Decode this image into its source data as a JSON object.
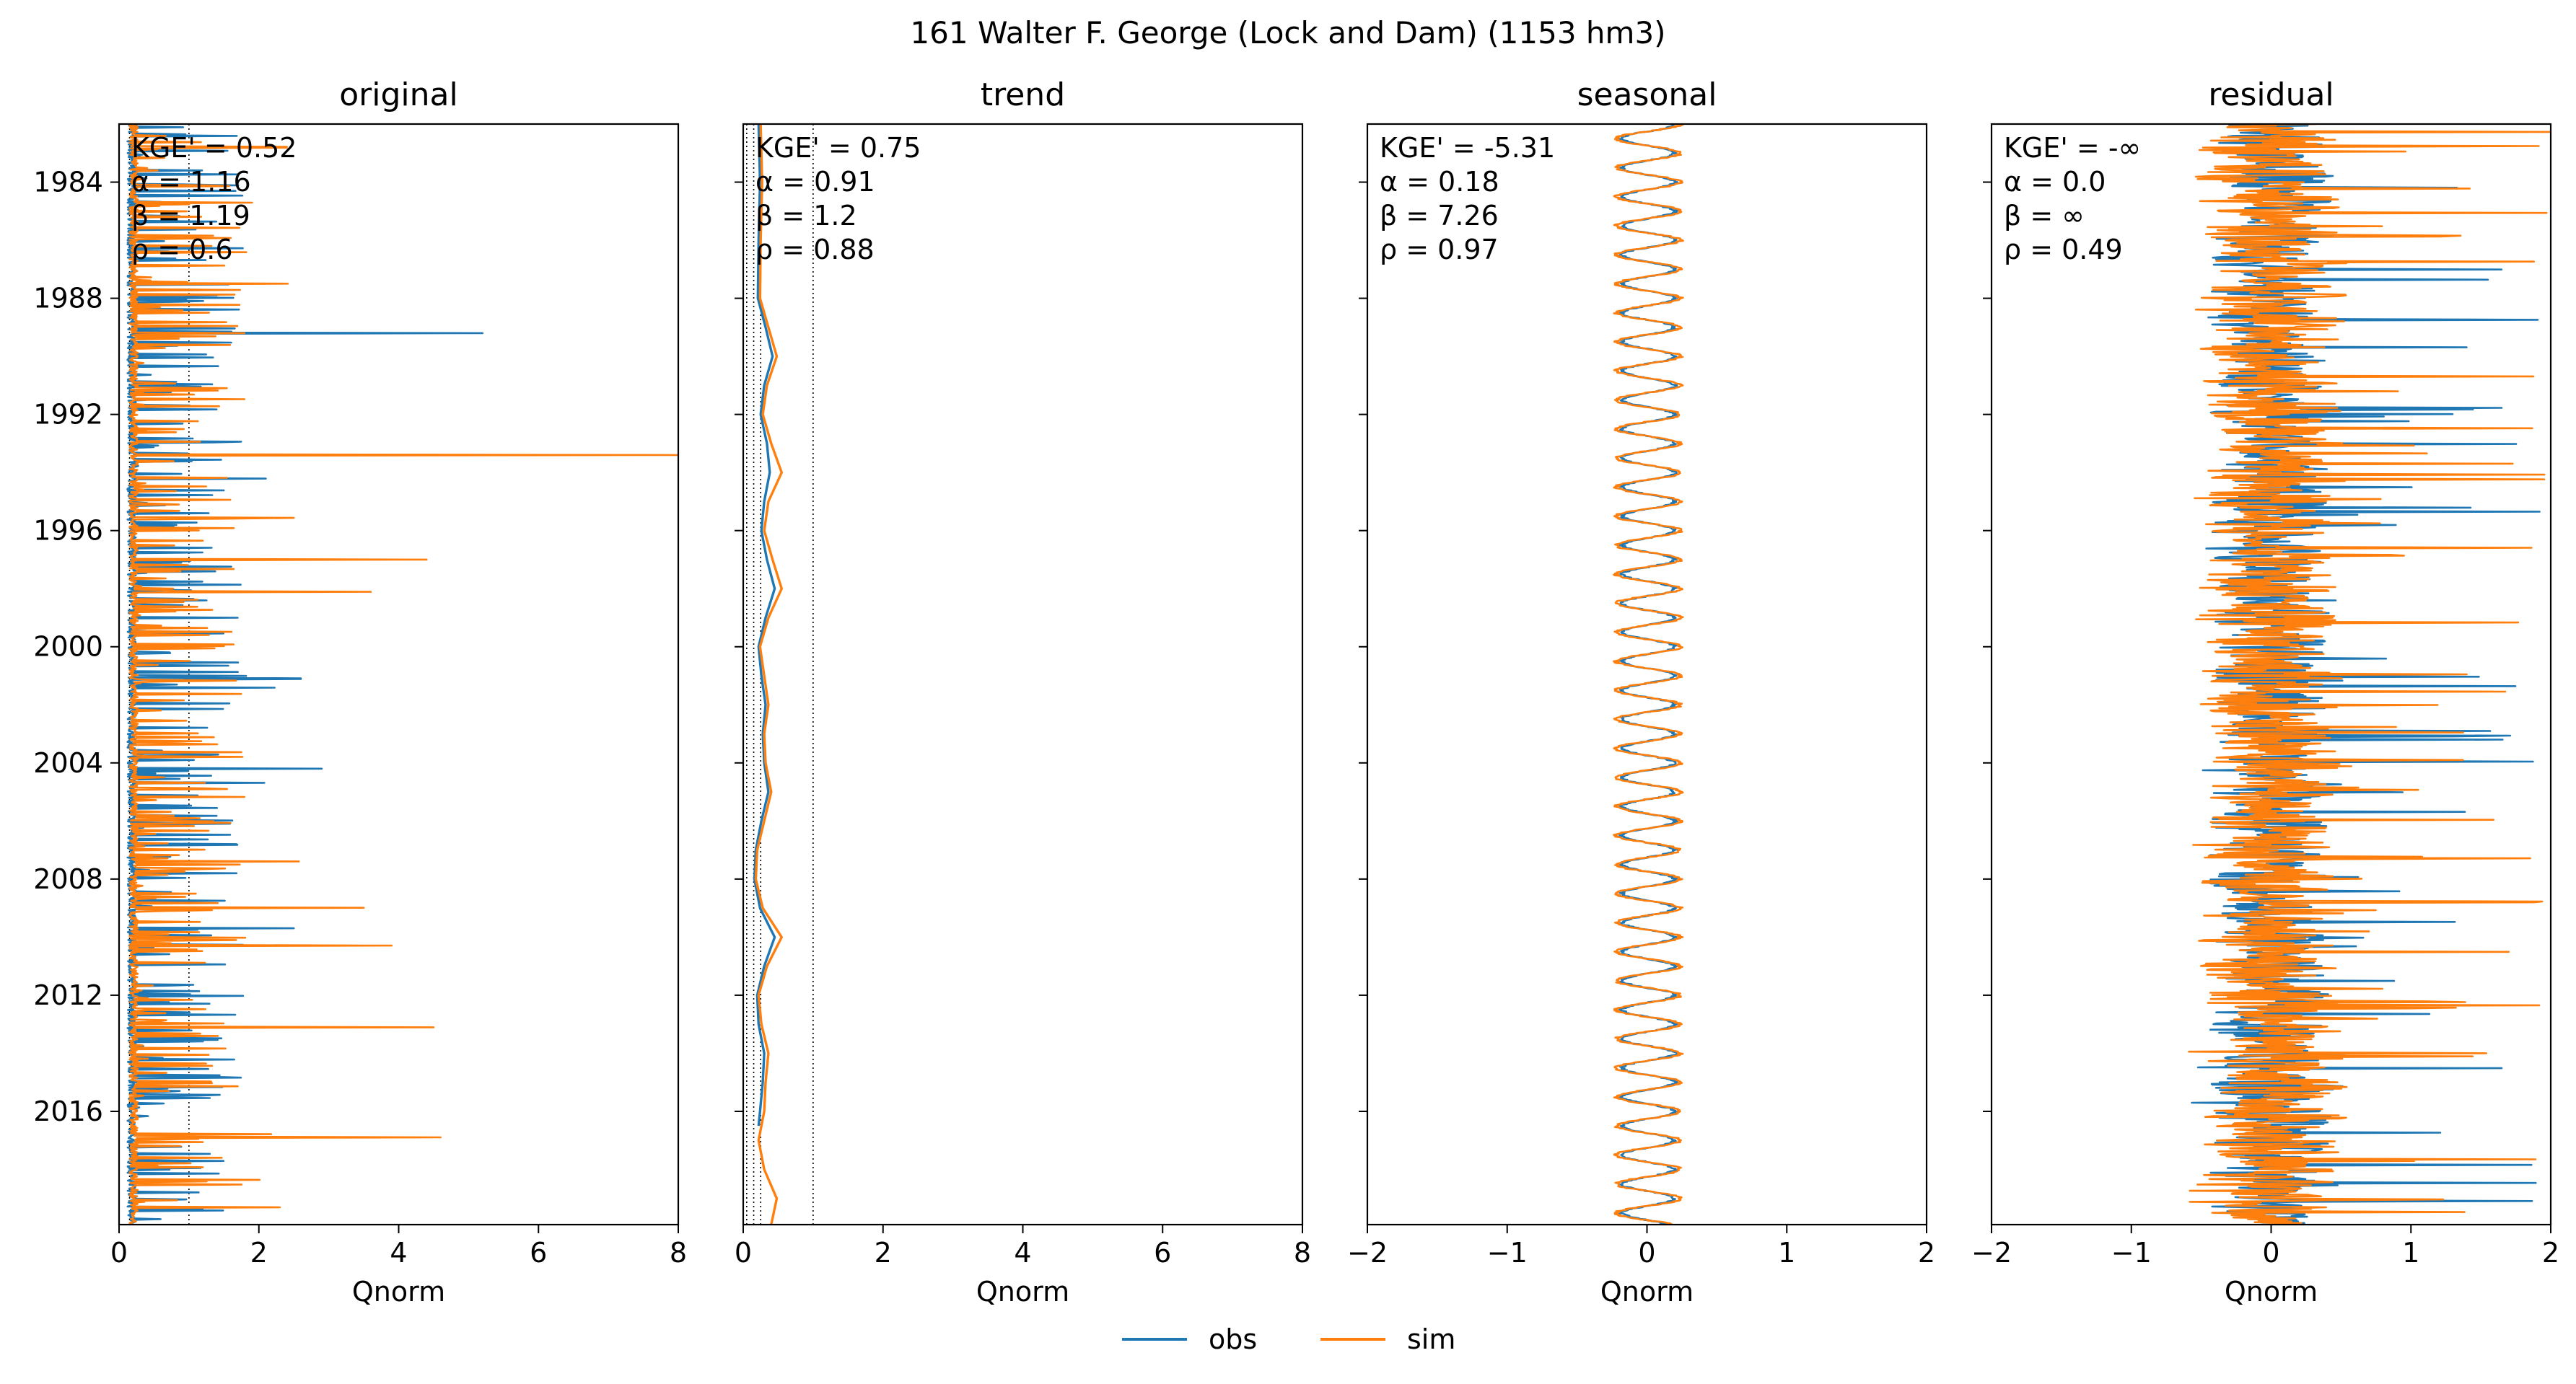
{
  "figure": {
    "suptitle": "161  Walter F. George (Lock and  Dam) (1153 hm3)",
    "legend": {
      "placement": "bottom-center",
      "entries": [
        {
          "name": "obs",
          "color": "#1f77b4"
        },
        {
          "name": "sim",
          "color": "#ff7f0e"
        }
      ]
    }
  },
  "chart_data": [
    {
      "type": "line",
      "title": "original",
      "xlabel": "Qnorm",
      "ylabel": "",
      "orientation": "horizontal-time-on-y",
      "xlim": [
        0,
        8
      ],
      "xticks": [
        "0",
        "2",
        "4",
        "6",
        "8"
      ],
      "ylim": [
        1982.0,
        2019.9
      ],
      "yticks": [
        "1984",
        "1988",
        "1992",
        "1996",
        "2000",
        "2004",
        "2008",
        "2012",
        "2016"
      ],
      "show_yticklabels": true,
      "reference_lines_x": [
        0.15,
        1.0
      ],
      "stats": [
        "KGE' = 0.52",
        "α = 1.16",
        "β = 1.19",
        "ρ = 0.6"
      ],
      "series": [
        {
          "name": "obs",
          "color": "#1f77b4",
          "style": "flow",
          "base": 0.12,
          "peak_max": 5.2,
          "points": [
            [
              1989.2,
              5.2
            ],
            [
              1994.2,
              2.1
            ],
            [
              2001.1,
              2.6
            ],
            [
              2004.2,
              2.9
            ],
            [
              2009.7,
              2.5
            ],
            [
              2013.6,
              1.2
            ]
          ]
        },
        {
          "name": "sim",
          "color": "#ff7f0e",
          "style": "flow",
          "base": 0.15,
          "peak_max": 8.0,
          "points": [
            [
              1993.4,
              8.0
            ],
            [
              1997.0,
              4.4
            ],
            [
              1998.1,
              3.6
            ],
            [
              2009.0,
              3.5
            ],
            [
              2010.3,
              3.9
            ],
            [
              2013.1,
              4.5
            ],
            [
              2016.9,
              4.6
            ],
            [
              2019.3,
              2.3
            ],
            [
              1982.8,
              2.4
            ]
          ]
        }
      ]
    },
    {
      "type": "line",
      "title": "trend",
      "xlabel": "Qnorm",
      "ylabel": "",
      "orientation": "horizontal-time-on-y",
      "xlim": [
        0,
        8
      ],
      "xticks": [
        "0",
        "2",
        "4",
        "6",
        "8"
      ],
      "ylim": [
        1982.0,
        2019.9
      ],
      "yticks": [
        "1984",
        "1988",
        "1992",
        "1996",
        "2000",
        "2004",
        "2008",
        "2012",
        "2016"
      ],
      "show_yticklabels": false,
      "reference_lines_x": [
        0.05,
        0.15,
        0.25,
        1.0
      ],
      "stats": [
        "KGE' = 0.75",
        "α = 0.91",
        "β = 1.2",
        "ρ = 0.88"
      ],
      "series": [
        {
          "name": "obs",
          "color": "#1f77b4",
          "style": "smooth",
          "points": [
            [
              1982.0,
              0.22
            ],
            [
              1984,
              0.24
            ],
            [
              1986,
              0.22
            ],
            [
              1988,
              0.21
            ],
            [
              1989,
              0.32
            ],
            [
              1990,
              0.42
            ],
            [
              1991,
              0.3
            ],
            [
              1992,
              0.25
            ],
            [
              1993,
              0.34
            ],
            [
              1994,
              0.38
            ],
            [
              1995,
              0.3
            ],
            [
              1996,
              0.26
            ],
            [
              1997,
              0.34
            ],
            [
              1998,
              0.45
            ],
            [
              1999,
              0.32
            ],
            [
              2000,
              0.22
            ],
            [
              2001,
              0.26
            ],
            [
              2002,
              0.32
            ],
            [
              2003,
              0.28
            ],
            [
              2004,
              0.3
            ],
            [
              2005,
              0.36
            ],
            [
              2006,
              0.26
            ],
            [
              2007,
              0.18
            ],
            [
              2008,
              0.16
            ],
            [
              2009,
              0.24
            ],
            [
              2010,
              0.45
            ],
            [
              2011,
              0.3
            ],
            [
              2012,
              0.2
            ],
            [
              2013,
              0.22
            ],
            [
              2014,
              0.3
            ],
            [
              2015,
              0.28
            ],
            [
              2016,
              0.24
            ],
            [
              2016.5,
              0.22
            ]
          ]
        },
        {
          "name": "sim",
          "color": "#ff7f0e",
          "style": "smooth",
          "points": [
            [
              1982.0,
              0.25
            ],
            [
              1984,
              0.27
            ],
            [
              1986,
              0.25
            ],
            [
              1988,
              0.24
            ],
            [
              1989,
              0.36
            ],
            [
              1990,
              0.48
            ],
            [
              1991,
              0.34
            ],
            [
              1992,
              0.28
            ],
            [
              1993,
              0.4
            ],
            [
              1994,
              0.55
            ],
            [
              1995,
              0.36
            ],
            [
              1996,
              0.3
            ],
            [
              1997,
              0.42
            ],
            [
              1998,
              0.55
            ],
            [
              1999,
              0.36
            ],
            [
              2000,
              0.24
            ],
            [
              2001,
              0.3
            ],
            [
              2002,
              0.36
            ],
            [
              2003,
              0.3
            ],
            [
              2004,
              0.32
            ],
            [
              2005,
              0.4
            ],
            [
              2006,
              0.3
            ],
            [
              2007,
              0.2
            ],
            [
              2008,
              0.18
            ],
            [
              2009,
              0.28
            ],
            [
              2010,
              0.55
            ],
            [
              2011,
              0.34
            ],
            [
              2012,
              0.22
            ],
            [
              2013,
              0.26
            ],
            [
              2014,
              0.36
            ],
            [
              2015,
              0.32
            ],
            [
              2016,
              0.3
            ],
            [
              2017,
              0.22
            ],
            [
              2018,
              0.3
            ],
            [
              2019,
              0.48
            ],
            [
              2019.9,
              0.4
            ]
          ]
        }
      ]
    },
    {
      "type": "line",
      "title": "seasonal",
      "xlabel": "Qnorm",
      "ylabel": "",
      "orientation": "horizontal-time-on-y",
      "xlim": [
        -2,
        2
      ],
      "xticks": [
        "−2",
        "−1",
        "0",
        "1",
        "2"
      ],
      "ylim": [
        1982.0,
        2019.9
      ],
      "yticks": [
        "1984",
        "1988",
        "1992",
        "1996",
        "2000",
        "2004",
        "2008",
        "2012",
        "2016"
      ],
      "show_yticklabels": false,
      "reference_lines_x": [],
      "stats": [
        "KGE' = -5.31",
        "α = 0.18",
        "β = 7.26",
        "ρ = 0.97"
      ],
      "series": [
        {
          "name": "obs",
          "color": "#1f77b4",
          "style": "periodic",
          "period_years": 1,
          "range": [
            -0.18,
            0.2
          ]
        },
        {
          "name": "sim",
          "color": "#ff7f0e",
          "style": "periodic",
          "period_years": 1,
          "range": [
            -0.22,
            0.24
          ]
        }
      ]
    },
    {
      "type": "line",
      "title": "residual",
      "xlabel": "Qnorm",
      "ylabel": "",
      "orientation": "horizontal-time-on-y",
      "xlim": [
        -2,
        2
      ],
      "xticks": [
        "−2",
        "−1",
        "0",
        "1",
        "2"
      ],
      "ylim": [
        1982.0,
        2019.9
      ],
      "yticks": [
        "1984",
        "1988",
        "1992",
        "1996",
        "2000",
        "2004",
        "2008",
        "2012",
        "2016"
      ],
      "show_yticklabels": false,
      "reference_lines_x": [],
      "stats": [
        "KGE' = -∞",
        "α = 0.0",
        "β = ∞",
        "ρ = 0.49"
      ],
      "series": [
        {
          "name": "obs",
          "color": "#1f77b4",
          "style": "residual",
          "spread": 0.45,
          "peak_max": 2.0
        },
        {
          "name": "sim",
          "color": "#ff7f0e",
          "style": "residual",
          "spread": 0.55,
          "peak_max": 2.0
        }
      ]
    }
  ]
}
